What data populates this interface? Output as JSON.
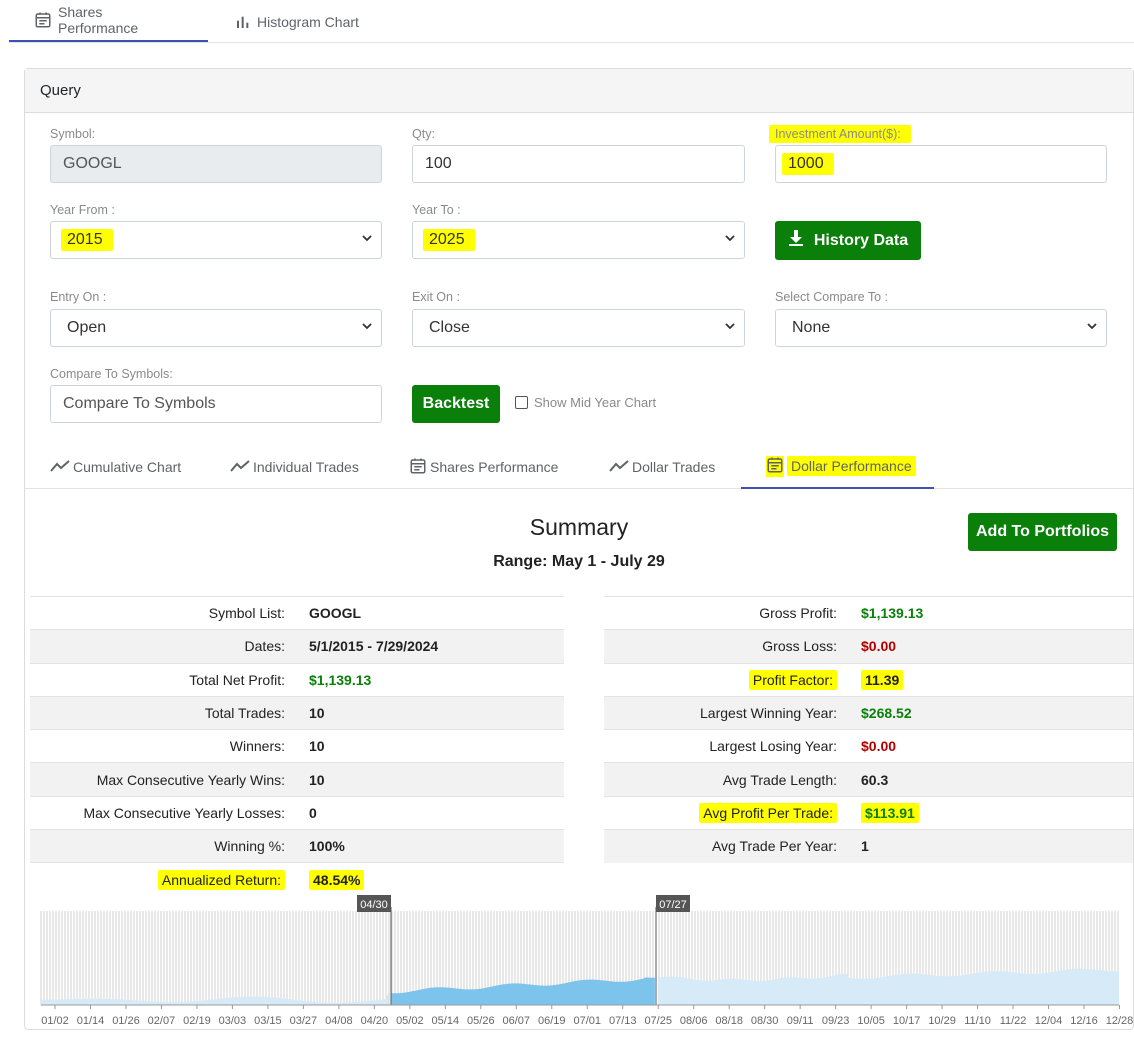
{
  "top_tabs": [
    {
      "label": "Shares Performance",
      "icon": "calendar-icon",
      "active": true
    },
    {
      "label": "Histogram Chart",
      "icon": "bar-chart-icon",
      "active": false
    }
  ],
  "query": {
    "title": "Query",
    "symbol_label": "Symbol:",
    "symbol_value": "GOOGL",
    "qty_label": "Qty:",
    "qty_value": "100",
    "investment_label": "Investment Amount($):",
    "investment_value": "1000",
    "year_from_label": "Year From :",
    "year_from_value": "2015",
    "year_to_label": "Year To :",
    "year_to_value": "2025",
    "history_button": "History Data",
    "entry_label": "Entry On :",
    "entry_value": "Open",
    "exit_label": "Exit On :",
    "exit_value": "Close",
    "compare_label": "Select Compare To :",
    "compare_value": "None",
    "compare_symbols_label": "Compare To Symbols:",
    "compare_symbols_placeholder": "Compare To Symbols",
    "backtest_button": "Backtest",
    "mid_year_label": "Show Mid Year Chart"
  },
  "sub_tabs": [
    {
      "label": "Cumulative Chart",
      "icon": "line-chart-icon"
    },
    {
      "label": "Individual Trades",
      "icon": "line-chart-icon"
    },
    {
      "label": "Shares Performance",
      "icon": "calendar-icon"
    },
    {
      "label": "Dollar Trades",
      "icon": "line-chart-icon"
    },
    {
      "label": "Dollar Performance",
      "icon": "calendar-icon",
      "active": true
    }
  ],
  "summary": {
    "title": "Summary",
    "range": "Range: May 1 - July 29",
    "add_button": "Add To Portfolios",
    "left": [
      {
        "key": "Symbol List:",
        "value": "GOOGL"
      },
      {
        "key": "Dates:",
        "value": "5/1/2015 - 7/29/2024"
      },
      {
        "key": "Total Net Profit:",
        "value": "$1,139.13"
      },
      {
        "key": "Total Trades:",
        "value": "10"
      },
      {
        "key": "Winners:",
        "value": "10"
      },
      {
        "key": "Max Consecutive Yearly Wins:",
        "value": "10"
      },
      {
        "key": "Max Consecutive Yearly Losses:",
        "value": "0"
      },
      {
        "key": "Winning %:",
        "value": "100%"
      },
      {
        "key": "Annualized Return:",
        "value": "48.54%"
      }
    ],
    "right": [
      {
        "key": "Gross Profit:",
        "value": "$1,139.13"
      },
      {
        "key": "Gross Loss:",
        "value": "$0.00"
      },
      {
        "key": "Profit Factor:",
        "value": "11.39"
      },
      {
        "key": "Largest Winning Year:",
        "value": "$268.52"
      },
      {
        "key": "Largest Losing Year:",
        "value": "$0.00"
      },
      {
        "key": "Avg Trade Length:",
        "value": "60.3"
      },
      {
        "key": "Avg Profit Per Trade:",
        "value": "$113.91"
      },
      {
        "key": "Avg Trade Per Year:",
        "value": "1"
      }
    ]
  },
  "colors": {
    "green": "#0a7f0a",
    "red": "#b00000",
    "highlight": "#ffff00",
    "tab_underline": "#3f51b5",
    "area_selected": "#7cc4ec",
    "area_unselected": "#d6ebf7"
  },
  "chart_data": {
    "type": "area",
    "selection_start": "04/30",
    "selection_end": "07/27",
    "x_ticks": [
      "01/02",
      "01/14",
      "01/26",
      "02/07",
      "02/19",
      "03/03",
      "03/15",
      "03/27",
      "04/08",
      "04/20",
      "05/02",
      "05/14",
      "05/26",
      "06/07",
      "06/19",
      "07/01",
      "07/13",
      "07/25",
      "08/06",
      "08/18",
      "08/30",
      "09/11",
      "09/23",
      "10/05",
      "10/17",
      "10/29",
      "11/10",
      "11/22",
      "12/04",
      "12/16",
      "12/28"
    ],
    "ylim": [
      0,
      1
    ]
  }
}
